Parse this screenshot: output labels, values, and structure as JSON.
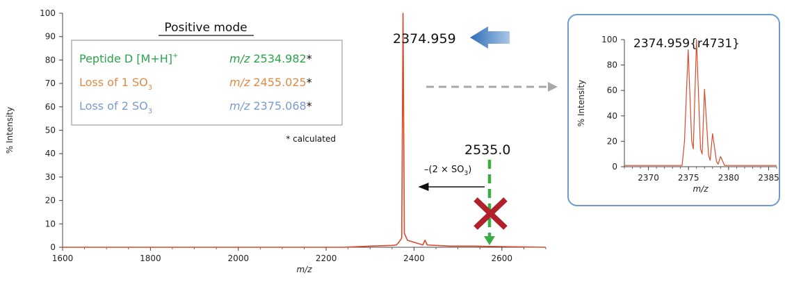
{
  "colors": {
    "spectrum": "#d94a2b",
    "peptide": "#2aa44a",
    "loss1": "#e08a45",
    "loss2": "#7a9bcc",
    "arrow_blue": "#2f6db5",
    "inset_border": "#6b9bd0",
    "cross": "#b0212a",
    "dash_gray": "#a8a8a8",
    "dash_green": "#3aad45"
  },
  "legend": {
    "title": "Positive mode",
    "rows": [
      {
        "label": "Peptide D [M+H]",
        "sup": "+",
        "mz_prefix": "m/z",
        "mz": "2534.982",
        "star": "*"
      },
      {
        "label": "Loss of 1 SO",
        "sub": "3",
        "mz_prefix": "m/z",
        "mz": "2455.025",
        "star": "*"
      },
      {
        "label": "Loss of 2 SO",
        "sub": "3",
        "mz_prefix": "m/z",
        "mz": "2375.068",
        "star": "*"
      }
    ],
    "footnote": "* calculated"
  },
  "annotations": {
    "main_peak": "2374.959",
    "expected_peak": "2535.0",
    "loss_label_prefix": "–(2 × SO",
    "loss_label_sub": "3",
    "loss_label_suffix": ")"
  },
  "chart_data": [
    {
      "type": "line",
      "xlabel": "m/z",
      "ylabel": "% Intensity",
      "xlim": [
        1600,
        2700
      ],
      "ylim": [
        0,
        100
      ],
      "xticks": [
        1600,
        1800,
        2000,
        2200,
        2400,
        2600
      ],
      "yticks": [
        0,
        10,
        20,
        30,
        40,
        50,
        60,
        70,
        80,
        90,
        100
      ],
      "grid": false,
      "series": [
        {
          "x": [
            1600,
            2240,
            2300,
            2350,
            2360,
            2365,
            2372,
            2374.959,
            2378,
            2385,
            2420,
            2425,
            2430,
            2480,
            2535,
            2600,
            2700
          ],
          "values": [
            0,
            0,
            0.5,
            0.8,
            1,
            2,
            4,
            100,
            6,
            3,
            1,
            3,
            1,
            0.5,
            0.5,
            0.3,
            0
          ]
        }
      ]
    },
    {
      "type": "line",
      "title": "2374.959{r4731}",
      "xlabel": "m/z",
      "ylabel": "% Intensity",
      "xlim": [
        2367,
        2386
      ],
      "ylim": [
        0,
        100
      ],
      "xticks": [
        2370,
        2375,
        2380,
        2385
      ],
      "yticks": [
        0,
        20,
        40,
        60,
        80,
        100
      ],
      "grid": false,
      "series": [
        {
          "x": [
            2367,
            2374.2,
            2374.5,
            2374.96,
            2375.4,
            2375.6,
            2376.0,
            2376.5,
            2376.7,
            2377.0,
            2377.5,
            2377.7,
            2378.0,
            2378.5,
            2378.7,
            2379.0,
            2379.5,
            2380,
            2386
          ],
          "values": [
            1,
            1,
            20,
            92,
            20,
            14,
            100,
            14,
            10,
            61,
            9,
            5,
            26,
            4,
            2,
            8,
            1,
            1,
            1
          ]
        }
      ]
    }
  ]
}
